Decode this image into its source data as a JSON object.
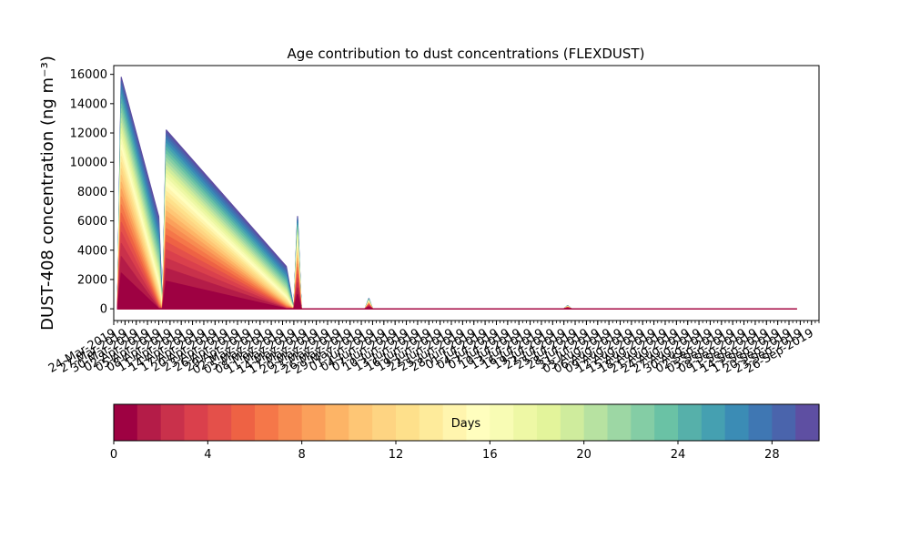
{
  "chart_data": {
    "type": "area",
    "title": "Age contribution to dust concentrations (FLEXDUST)",
    "ylabel": "DUST-408 concentration (ng m⁻³)",
    "xlabel": "",
    "x_scale": "date",
    "xlim": [
      "2019-03-24",
      "2019-09-28"
    ],
    "ylim": [
      -800,
      16600
    ],
    "y_ticks": [
      0,
      2000,
      4000,
      6000,
      8000,
      10000,
      12000,
      14000,
      16000
    ],
    "x_tick_labels": [
      "24-Mar-2019",
      "27-Mar-2019",
      "30-Mar-2019",
      "02-Apr-2019",
      "05-Apr-2019",
      "08-Apr-2019",
      "11-Apr-2019",
      "14-Apr-2019",
      "17-Apr-2019",
      "20-Apr-2019",
      "23-Apr-2019",
      "26-Apr-2019",
      "29-Apr-2019",
      "02-May-2019",
      "05-May-2019",
      "08-May-2019",
      "11-May-2019",
      "14-May-2019",
      "17-May-2019",
      "20-May-2019",
      "23-May-2019",
      "26-May-2019",
      "29-May-2019",
      "01-Jun-2019",
      "04-Jun-2019",
      "07-Jun-2019",
      "10-Jun-2019",
      "13-Jun-2019",
      "16-Jun-2019",
      "19-Jun-2019",
      "22-Jun-2019",
      "25-Jun-2019",
      "28-Jun-2019",
      "01-Jul-2019",
      "04-Jul-2019",
      "07-Jul-2019",
      "10-Jul-2019",
      "13-Jul-2019",
      "16-Jul-2019",
      "19-Jul-2019",
      "22-Jul-2019",
      "25-Jul-2019",
      "28-Jul-2019",
      "31-Jul-2019",
      "03-Aug-2019",
      "06-Aug-2019",
      "09-Aug-2019",
      "12-Aug-2019",
      "15-Aug-2019",
      "18-Aug-2019",
      "21-Aug-2019",
      "24-Aug-2019",
      "27-Aug-2019",
      "30-Aug-2019",
      "02-Sep-2019",
      "05-Sep-2019",
      "08-Sep-2019",
      "11-Sep-2019",
      "14-Sep-2019",
      "17-Sep-2019",
      "20-Sep-2019",
      "23-Sep-2019",
      "26-Sep-2019"
    ],
    "x_tick_label_every_days": 3,
    "x_minor_tick_every_days": 1,
    "total_series": {
      "dates": [
        "2019-03-25",
        "2019-03-26",
        "2019-04-05",
        "2019-04-06",
        "2019-04-07",
        "2019-05-09",
        "2019-05-11",
        "2019-05-12",
        "2019-05-13",
        "2019-05-14",
        "2019-05-30",
        "2019-05-31",
        "2019-06-01",
        "2019-06-02",
        "2019-06-03",
        "2019-06-04",
        "2019-06-05",
        "2019-07-22",
        "2019-07-23",
        "2019-07-24",
        "2019-09-22"
      ],
      "values": [
        0,
        15800,
        6300,
        0,
        12200,
        2900,
        0,
        6300,
        0,
        0,
        0,
        700,
        0,
        0,
        0,
        0,
        0,
        0,
        220,
        0,
        0
      ],
      "fresh_fraction": [
        0,
        1,
        0,
        0,
        1,
        0,
        0,
        1,
        0,
        0,
        0,
        1,
        0,
        0,
        0,
        0,
        0,
        0,
        1,
        0,
        0
      ]
    },
    "colorbar": {
      "label": "Days",
      "colormap": "Spectral",
      "min": 0,
      "max": 30,
      "ticks": [
        0,
        4,
        8,
        12,
        16,
        20,
        24,
        28
      ],
      "levels": 30,
      "colors": [
        "#9e0142",
        "#b41c48",
        "#c9314b",
        "#da404c",
        "#e4504a",
        "#ee6244",
        "#f57749",
        "#f88c51",
        "#fba05b",
        "#fdb466",
        "#fec675",
        "#fed482",
        "#fee08b",
        "#feeb9b",
        "#fff5ae",
        "#fffebe",
        "#f8fcb4",
        "#eef8a5",
        "#e3f49b",
        "#cfec9d",
        "#b7e2a1",
        "#9dd7a4",
        "#84cda5",
        "#6ac2a5",
        "#56b0aa",
        "#45a0b1",
        "#3b8cb5",
        "#3f77b3",
        "#4a64ac",
        "#5e4fa2"
      ]
    }
  }
}
